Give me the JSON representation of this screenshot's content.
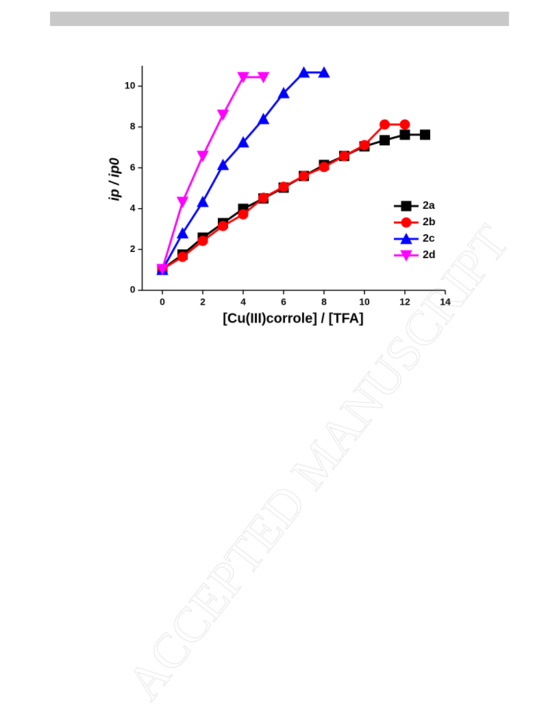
{
  "watermark": "ACCEPTED MANUSCRIPT",
  "chart_data": {
    "type": "line",
    "xlabel": "[Cu(III)corrole] / [TFA]",
    "ylabel": "ip / ip0",
    "xlim": [
      -1,
      14
    ],
    "xticks": [
      0,
      2,
      4,
      6,
      8,
      10,
      12,
      14
    ],
    "ylim": [
      0,
      11
    ],
    "yticks": [
      0,
      2,
      4,
      6,
      8,
      10
    ],
    "legend": "right",
    "series": [
      {
        "name": "2a",
        "color": "#000000",
        "marker": "square",
        "x": [
          0,
          1,
          2,
          3,
          4,
          5,
          6,
          7,
          8,
          9,
          10,
          11,
          12,
          13
        ],
        "values": [
          1.04,
          1.75,
          2.58,
          3.29,
          3.99,
          4.5,
          5.03,
          5.6,
          6.14,
          6.58,
          7.05,
          7.35,
          7.62,
          7.62
        ]
      },
      {
        "name": "2b",
        "color": "#ff0000",
        "marker": "circle",
        "x": [
          0,
          1,
          2,
          3,
          4,
          5,
          6,
          7,
          8,
          9,
          10,
          11,
          12
        ],
        "values": [
          1.04,
          1.64,
          2.42,
          3.15,
          3.72,
          4.53,
          5.07,
          5.6,
          6.04,
          6.58,
          7.11,
          8.12,
          8.12
        ]
      },
      {
        "name": "2c",
        "color": "#0000ff",
        "marker": "triangle-up",
        "x": [
          0,
          1,
          2,
          3,
          4,
          5,
          6,
          7,
          8
        ],
        "values": [
          1.0,
          2.79,
          4.33,
          6.14,
          7.25,
          8.39,
          9.66,
          10.67,
          10.67
        ]
      },
      {
        "name": "2d",
        "color": "#ff00ff",
        "marker": "triangle-down",
        "x": [
          0,
          1,
          2,
          3,
          4,
          5
        ],
        "values": [
          1.04,
          4.33,
          6.58,
          8.6,
          10.44,
          10.44
        ]
      }
    ]
  }
}
